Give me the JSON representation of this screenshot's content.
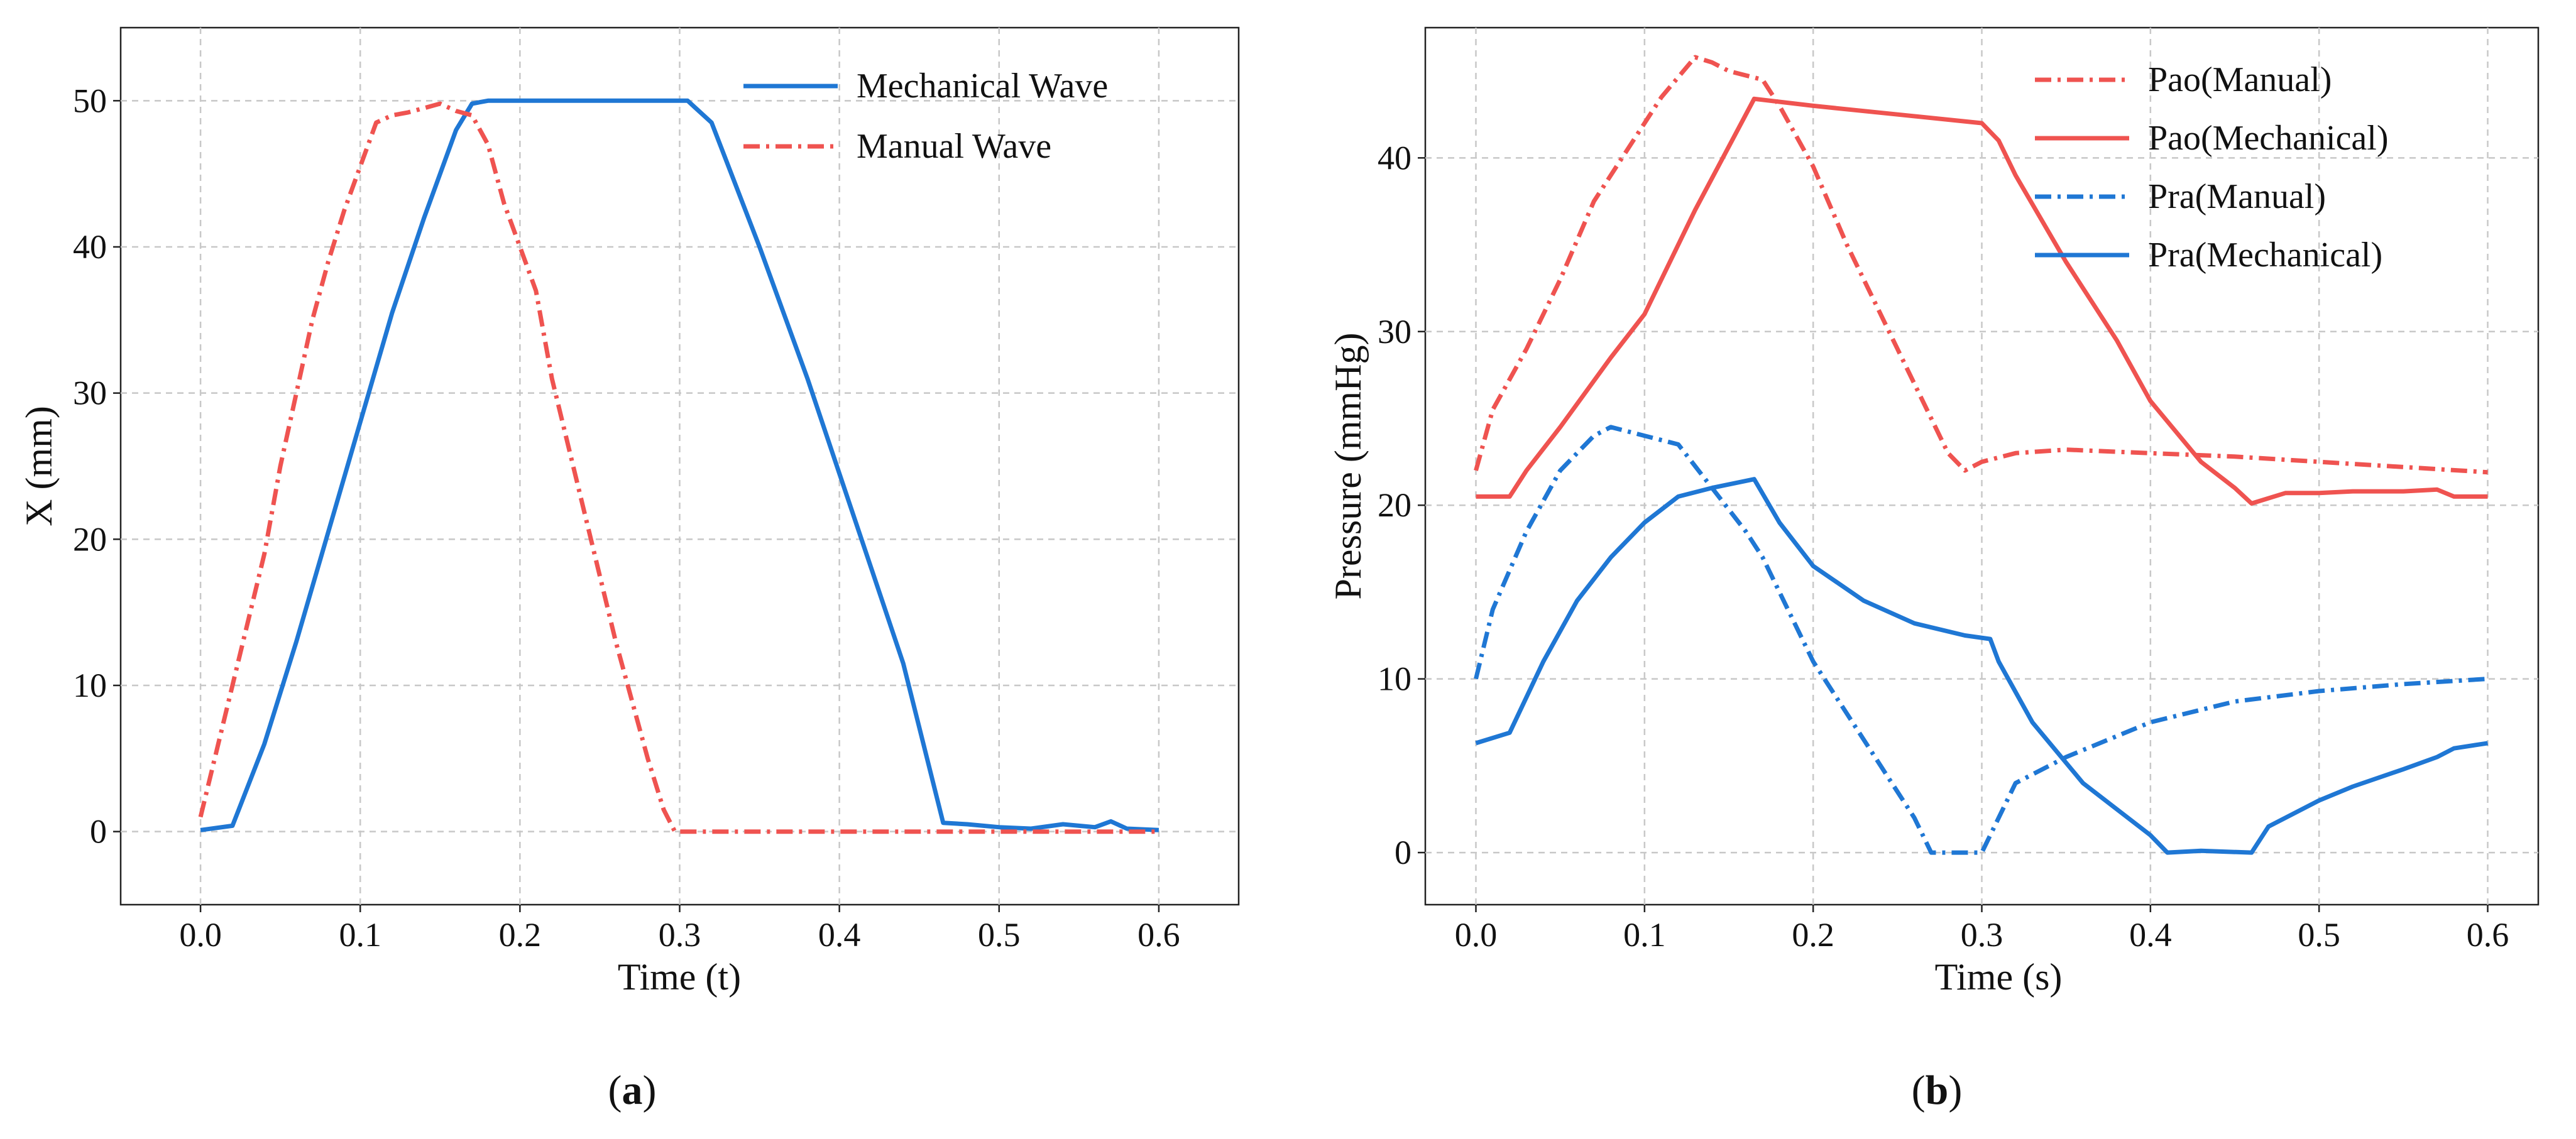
{
  "chart_data": [
    {
      "type": "line",
      "caption": "a",
      "xlabel": "Time  (t)",
      "ylabel": "X  (mm)",
      "xlim": [
        -0.05,
        0.65
      ],
      "ylim": [
        -5,
        55
      ],
      "xticks": [
        0.0,
        0.1,
        0.2,
        0.3,
        0.4,
        0.5,
        0.6
      ],
      "xtick_labels": [
        "0.0",
        "0.1",
        "0.2",
        "0.3",
        "0.4",
        "0.5",
        "0.6"
      ],
      "yticks": [
        0,
        10,
        20,
        30,
        40,
        50
      ],
      "ytick_labels": [
        "0",
        "10",
        "20",
        "30",
        "40",
        "50"
      ],
      "grid": true,
      "legend_position": "top-right",
      "series": [
        {
          "name": "Mechanical Wave",
          "color": "#1f77d4",
          "style": "solid",
          "x": [
            0.0,
            0.02,
            0.04,
            0.06,
            0.08,
            0.1,
            0.12,
            0.14,
            0.16,
            0.17,
            0.18,
            0.2,
            0.25,
            0.3,
            0.305,
            0.31,
            0.32,
            0.35,
            0.38,
            0.4,
            0.42,
            0.44,
            0.465,
            0.48,
            0.5,
            0.52,
            0.54,
            0.56,
            0.57,
            0.58,
            0.6
          ],
          "y": [
            0.1,
            0.4,
            6.0,
            13.0,
            20.5,
            28.0,
            35.5,
            42.0,
            48.0,
            49.8,
            50.0,
            50.0,
            50.0,
            50.0,
            50.0,
            49.5,
            48.5,
            40.0,
            31.0,
            24.5,
            18.0,
            11.5,
            0.6,
            0.5,
            0.3,
            0.2,
            0.5,
            0.3,
            0.7,
            0.2,
            0.1
          ]
        },
        {
          "name": "Manual Wave",
          "color": "#ef5350",
          "style": "dashdot",
          "x": [
            0.0,
            0.02,
            0.04,
            0.05,
            0.06,
            0.07,
            0.08,
            0.09,
            0.1,
            0.11,
            0.12,
            0.13,
            0.14,
            0.15,
            0.16,
            0.17,
            0.18,
            0.19,
            0.2,
            0.21,
            0.22,
            0.24,
            0.26,
            0.28,
            0.29,
            0.297,
            0.3,
            0.35,
            0.4,
            0.45,
            0.5,
            0.55,
            0.6
          ],
          "y": [
            1.0,
            10.0,
            19.0,
            25.0,
            30.0,
            35.0,
            39.0,
            42.5,
            45.5,
            48.5,
            49.0,
            49.2,
            49.5,
            49.8,
            49.3,
            49.0,
            47.0,
            43.0,
            40.0,
            37.0,
            31.0,
            22.0,
            13.0,
            5.0,
            1.5,
            0.0,
            0.0,
            0.0,
            0.0,
            0.0,
            0.0,
            0.0,
            0.0
          ]
        }
      ]
    },
    {
      "type": "line",
      "caption": "b",
      "xlabel": "Time  (s)",
      "ylabel": "Pressure  (mmHg)",
      "xlim": [
        -0.03,
        0.63
      ],
      "ylim": [
        -3,
        47.5
      ],
      "xticks": [
        0.0,
        0.1,
        0.2,
        0.3,
        0.4,
        0.5,
        0.6
      ],
      "xtick_labels": [
        "0.0",
        "0.1",
        "0.2",
        "0.3",
        "0.4",
        "0.5",
        "0.6"
      ],
      "yticks": [
        0,
        10,
        20,
        30,
        40
      ],
      "ytick_labels": [
        "0",
        "10",
        "20",
        "30",
        "40"
      ],
      "grid": true,
      "legend_position": "top-right",
      "series": [
        {
          "name": "Pao(Manual)",
          "color": "#ef5350",
          "style": "dashdot",
          "x": [
            0.0,
            0.01,
            0.03,
            0.05,
            0.07,
            0.09,
            0.11,
            0.13,
            0.14,
            0.15,
            0.17,
            0.18,
            0.2,
            0.22,
            0.25,
            0.28,
            0.29,
            0.3,
            0.32,
            0.35,
            0.4,
            0.45,
            0.5,
            0.55,
            0.6
          ],
          "y": [
            22.0,
            25.5,
            29.0,
            33.0,
            37.5,
            40.5,
            43.5,
            45.8,
            45.5,
            45.0,
            44.5,
            43.0,
            39.5,
            35.0,
            29.0,
            23.0,
            22.0,
            22.5,
            23.0,
            23.2,
            23.0,
            22.8,
            22.5,
            22.2,
            21.9
          ]
        },
        {
          "name": "Pao(Mechanical)",
          "color": "#ef5350",
          "style": "solid",
          "x": [
            0.0,
            0.02,
            0.03,
            0.05,
            0.08,
            0.1,
            0.13,
            0.165,
            0.2,
            0.25,
            0.3,
            0.31,
            0.32,
            0.35,
            0.38,
            0.4,
            0.43,
            0.45,
            0.46,
            0.48,
            0.5,
            0.52,
            0.55,
            0.57,
            0.58,
            0.6
          ],
          "y": [
            20.5,
            20.5,
            22.0,
            24.5,
            28.5,
            31.0,
            37.0,
            43.4,
            43.0,
            42.5,
            42.0,
            41.0,
            39.0,
            34.0,
            29.5,
            26.0,
            22.5,
            21.0,
            20.1,
            20.7,
            20.7,
            20.8,
            20.8,
            20.9,
            20.5,
            20.5
          ]
        },
        {
          "name": "Pra(Manual)",
          "color": "#1f77d4",
          "style": "dashdot",
          "x": [
            0.0,
            0.01,
            0.03,
            0.05,
            0.07,
            0.08,
            0.1,
            0.12,
            0.14,
            0.16,
            0.17,
            0.18,
            0.2,
            0.22,
            0.24,
            0.26,
            0.27,
            0.3,
            0.31,
            0.32,
            0.35,
            0.4,
            0.45,
            0.5,
            0.55,
            0.6
          ],
          "y": [
            10.0,
            14.0,
            18.5,
            22.0,
            24.0,
            24.5,
            24.0,
            23.5,
            21.0,
            18.5,
            17.0,
            15.0,
            11.0,
            8.0,
            5.0,
            2.0,
            0.0,
            0.0,
            2.0,
            4.0,
            5.5,
            7.5,
            8.7,
            9.3,
            9.7,
            10.0
          ]
        },
        {
          "name": "Pra(Mechanical)",
          "color": "#1f77d4",
          "style": "solid",
          "x": [
            0.0,
            0.02,
            0.04,
            0.06,
            0.08,
            0.1,
            0.12,
            0.14,
            0.165,
            0.18,
            0.2,
            0.23,
            0.26,
            0.29,
            0.305,
            0.31,
            0.33,
            0.36,
            0.38,
            0.4,
            0.41,
            0.43,
            0.46,
            0.47,
            0.5,
            0.52,
            0.55,
            0.57,
            0.58,
            0.6
          ],
          "y": [
            6.3,
            6.9,
            11.0,
            14.5,
            17.0,
            19.0,
            20.5,
            21.0,
            21.5,
            19.0,
            16.5,
            14.5,
            13.2,
            12.5,
            12.3,
            11.0,
            7.5,
            4.0,
            2.5,
            1.0,
            0.0,
            0.1,
            0.0,
            1.5,
            3.0,
            3.8,
            4.8,
            5.5,
            6.0,
            6.3
          ]
        }
      ]
    }
  ]
}
